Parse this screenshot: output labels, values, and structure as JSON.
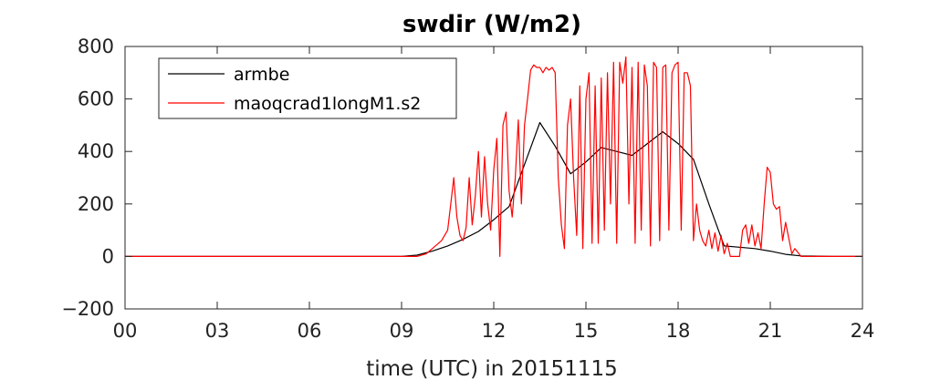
{
  "chart_data": {
    "type": "line",
    "title": "swdir  (W/m2)",
    "xlabel": "time (UTC) in 20151115",
    "ylabel": "",
    "xlim": [
      0,
      24
    ],
    "ylim": [
      -200,
      800
    ],
    "x_ticks": [
      0,
      3,
      6,
      9,
      12,
      15,
      18,
      21,
      24
    ],
    "x_tick_labels": [
      "00",
      "03",
      "06",
      "09",
      "12",
      "15",
      "18",
      "21",
      "24"
    ],
    "y_ticks": [
      -200,
      0,
      200,
      400,
      600,
      800
    ],
    "y_tick_labels": [
      "−200",
      "0",
      "200",
      "400",
      "600",
      "800"
    ],
    "legend_position": "top-left",
    "grid": false,
    "series": [
      {
        "name": "armbe",
        "color": "#000000",
        "x": [
          0,
          1,
          2,
          3,
          4,
          5,
          6,
          7,
          8,
          9,
          9.5,
          10,
          10.5,
          11,
          11.5,
          12,
          12.5,
          13,
          13.5,
          14,
          14.5,
          15,
          15.5,
          16,
          16.5,
          17,
          17.5,
          18,
          18.5,
          19,
          19.5,
          20,
          20.5,
          21,
          21.5,
          22,
          23,
          24
        ],
        "y": [
          0,
          0,
          0,
          0,
          0,
          0,
          0,
          0,
          0,
          0,
          5,
          20,
          40,
          65,
          95,
          140,
          190,
          350,
          510,
          420,
          315,
          360,
          415,
          400,
          385,
          430,
          475,
          430,
          370,
          200,
          40,
          35,
          30,
          20,
          8,
          2,
          0,
          0
        ]
      },
      {
        "name": "maoqcrad1longM1.s2",
        "color": "#ff0000",
        "x": [
          0,
          9.5,
          9.8,
          10.0,
          10.3,
          10.5,
          10.6,
          10.7,
          10.8,
          10.9,
          11.0,
          11.1,
          11.2,
          11.3,
          11.4,
          11.5,
          11.6,
          11.7,
          11.8,
          11.9,
          12.0,
          12.1,
          12.2,
          12.3,
          12.4,
          12.5,
          12.6,
          12.7,
          12.8,
          12.9,
          13.0,
          13.1,
          13.2,
          13.3,
          13.4,
          13.5,
          13.6,
          13.7,
          13.8,
          13.9,
          14.0,
          14.1,
          14.2,
          14.3,
          14.4,
          14.5,
          14.6,
          14.7,
          14.8,
          14.9,
          15.0,
          15.1,
          15.2,
          15.3,
          15.4,
          15.5,
          15.6,
          15.7,
          15.8,
          15.9,
          16.0,
          16.1,
          16.2,
          16.3,
          16.4,
          16.5,
          16.6,
          16.7,
          16.8,
          16.9,
          17.0,
          17.1,
          17.2,
          17.3,
          17.4,
          17.5,
          17.6,
          17.7,
          17.8,
          17.9,
          18.0,
          18.1,
          18.2,
          18.3,
          18.4,
          18.5,
          18.6,
          18.7,
          18.8,
          18.9,
          19.0,
          19.1,
          19.2,
          19.3,
          19.4,
          19.5,
          19.6,
          19.7,
          19.8,
          19.9,
          20.0,
          20.1,
          20.2,
          20.3,
          20.4,
          20.5,
          20.6,
          20.7,
          20.8,
          20.9,
          21.0,
          21.1,
          21.2,
          21.3,
          21.4,
          21.5,
          21.6,
          21.7,
          21.8,
          22.0,
          23.0,
          24.0
        ],
        "y": [
          0,
          0,
          10,
          30,
          60,
          100,
          200,
          300,
          150,
          80,
          60,
          110,
          300,
          120,
          230,
          400,
          150,
          380,
          200,
          100,
          330,
          450,
          0,
          500,
          550,
          250,
          150,
          300,
          520,
          200,
          500,
          600,
          710,
          730,
          720,
          720,
          700,
          720,
          710,
          720,
          700,
          300,
          120,
          30,
          500,
          600,
          300,
          80,
          650,
          30,
          600,
          700,
          50,
          650,
          50,
          680,
          100,
          700,
          200,
          740,
          50,
          740,
          660,
          760,
          200,
          720,
          50,
          740,
          100,
          730,
          650,
          40,
          740,
          720,
          60,
          720,
          730,
          100,
          700,
          730,
          740,
          100,
          700,
          700,
          650,
          60,
          200,
          100,
          60,
          40,
          100,
          30,
          90,
          20,
          80,
          10,
          50,
          0,
          0,
          0,
          0,
          100,
          120,
          50,
          120,
          40,
          90,
          30,
          200,
          340,
          320,
          200,
          180,
          190,
          60,
          130,
          70,
          10,
          30,
          0,
          0,
          0
        ]
      }
    ]
  }
}
